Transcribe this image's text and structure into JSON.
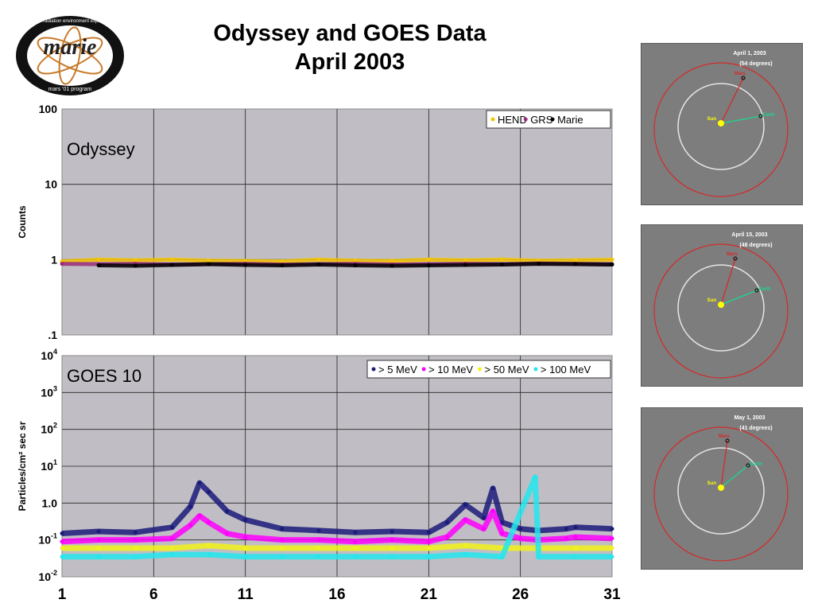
{
  "logo": {
    "text": "marie",
    "ring_top": "martian radiation environment experiment",
    "ring_bottom": "mars '01 program"
  },
  "title": {
    "line1": "Odyssey and GOES Data",
    "line2": "April 2003"
  },
  "colors": {
    "hend": "#f5c400",
    "grs": "#9a2d79",
    "marie": "#000000",
    "p5": "#1b1b7a",
    "p10": "#ff00ff",
    "p50": "#f2f21a",
    "p100": "#22e7ef",
    "plot_bg": "#c0bec4",
    "panel_bg": "#7d7d7d",
    "mars_orbit": "#d42a2a",
    "earth_orbit": "#e6e6e6",
    "sun": "#ffff00",
    "earth": "#1bd88f"
  },
  "chart_data": [
    {
      "type": "scatter",
      "title": "Odyssey",
      "xlabel": "",
      "ylabel": "Counts",
      "y_scale": "log",
      "ylim": [
        0.1,
        100
      ],
      "xlim": [
        1,
        31
      ],
      "x_ticks": [
        "1",
        "6",
        "11",
        "16",
        "21",
        "26",
        "31"
      ],
      "y_ticks": [
        "100",
        "10",
        "1",
        ".1"
      ],
      "grid": true,
      "legend_position": "top-right",
      "series": [
        {
          "name": "HEND",
          "x": [
            1,
            3,
            5,
            7,
            9,
            11,
            13,
            15,
            17,
            19,
            21,
            23,
            25,
            27,
            29,
            31
          ],
          "values": [
            0.95,
            1.0,
            0.98,
            1.0,
            0.97,
            0.96,
            0.95,
            1.0,
            0.97,
            0.96,
            1.0,
            0.98,
            1.0,
            0.97,
            0.98,
            1.0
          ]
        },
        {
          "name": "GRS",
          "x": [
            1,
            3,
            5,
            7,
            9,
            11,
            13,
            15,
            17,
            19,
            21,
            23,
            25,
            27,
            29,
            31
          ],
          "values": [
            0.88,
            0.87,
            0.88,
            0.86,
            0.87,
            0.88,
            0.86,
            0.87,
            0.88,
            0.86,
            0.87,
            0.88,
            0.87,
            0.89,
            0.88,
            0.87
          ]
        },
        {
          "name": "Marie",
          "x": [
            3,
            5,
            7,
            9,
            11,
            13,
            15,
            17,
            19,
            21,
            23,
            25,
            27,
            29,
            31
          ],
          "values": [
            0.84,
            0.83,
            0.85,
            0.87,
            0.85,
            0.84,
            0.86,
            0.84,
            0.83,
            0.84,
            0.85,
            0.86,
            0.88,
            0.87,
            0.86
          ]
        }
      ]
    },
    {
      "type": "scatter",
      "title": "GOES 10",
      "xlabel": "",
      "ylabel": "Particles/cm² sec sr",
      "y_scale": "log",
      "ylim": [
        0.01,
        10000
      ],
      "xlim": [
        1,
        31
      ],
      "x_ticks": [
        "1",
        "6",
        "11",
        "16",
        "21",
        "26",
        "31"
      ],
      "y_ticks": [
        "10^4",
        "10^3",
        "10^2",
        "10^1",
        "1.0",
        "10^-1",
        "10^-2"
      ],
      "grid": true,
      "legend_position": "top-right",
      "series": [
        {
          "name": "> 5 MeV",
          "x": [
            1,
            3,
            5,
            7,
            8,
            8.5,
            9,
            10,
            11,
            13,
            15,
            17,
            19,
            21,
            22,
            23,
            24,
            24.5,
            25,
            26,
            27,
            28.5,
            29,
            31
          ],
          "values": [
            0.15,
            0.17,
            0.16,
            0.22,
            0.8,
            3.5,
            2.0,
            0.6,
            0.35,
            0.2,
            0.18,
            0.16,
            0.17,
            0.16,
            0.3,
            0.9,
            0.4,
            2.5,
            0.3,
            0.2,
            0.18,
            0.2,
            0.22,
            0.2
          ]
        },
        {
          "name": "> 10 MeV",
          "x": [
            1,
            3,
            5,
            7,
            8,
            8.5,
            9,
            10,
            11,
            13,
            15,
            17,
            19,
            21,
            22,
            23,
            24,
            24.5,
            25,
            26,
            27,
            28.5,
            29,
            31
          ],
          "values": [
            0.09,
            0.1,
            0.1,
            0.11,
            0.25,
            0.45,
            0.3,
            0.15,
            0.12,
            0.1,
            0.1,
            0.09,
            0.1,
            0.09,
            0.12,
            0.35,
            0.2,
            0.6,
            0.15,
            0.11,
            0.1,
            0.11,
            0.12,
            0.11
          ]
        },
        {
          "name": "> 50 MeV",
          "x": [
            1,
            3,
            5,
            7,
            9,
            11,
            13,
            15,
            17,
            19,
            21,
            23,
            25,
            27,
            29,
            31
          ],
          "values": [
            0.06,
            0.06,
            0.06,
            0.06,
            0.07,
            0.06,
            0.06,
            0.06,
            0.06,
            0.06,
            0.06,
            0.07,
            0.06,
            0.06,
            0.06,
            0.06
          ]
        },
        {
          "name": "> 100 MeV",
          "x": [
            1,
            3,
            5,
            7,
            9,
            11,
            13,
            15,
            17,
            19,
            21,
            23,
            25,
            26.8,
            27,
            29,
            31
          ],
          "values": [
            0.035,
            0.035,
            0.035,
            0.04,
            0.04,
            0.035,
            0.035,
            0.035,
            0.035,
            0.035,
            0.035,
            0.04,
            0.035,
            5,
            0.035,
            0.035,
            0.035
          ]
        }
      ]
    }
  ],
  "orbit_diagrams": [
    {
      "date": "April 1,  2003",
      "angle": "(54 degrees)",
      "sun": "Sun",
      "mars": "Mars",
      "earth": "Earth"
    },
    {
      "date": "April 15,  2003",
      "angle": "(48 degrees)",
      "sun": "Sun",
      "mars": "Mars",
      "earth": "Earth"
    },
    {
      "date": "May 1,  2003",
      "angle": "(41 degrees)",
      "sun": "Sun",
      "mars": "Mars",
      "earth": "Earth"
    }
  ]
}
